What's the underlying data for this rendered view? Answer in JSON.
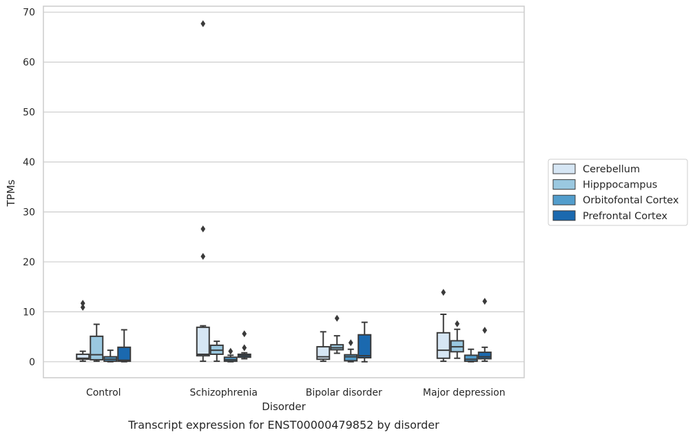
{
  "chart_data": {
    "type": "box",
    "caption": "Transcript expression for ENST00000479852 by disorder",
    "xlabel": "Disorder",
    "ylabel": "TPMs",
    "ylim": [
      -3.2,
      71.2
    ],
    "yticks": [
      0,
      10,
      20,
      30,
      40,
      50,
      60,
      70
    ],
    "grid": "horizontal",
    "legend_position": "right",
    "categories": [
      "Control",
      "Schizophrenia",
      "Bipolar disorder",
      "Major depression"
    ],
    "series": [
      {
        "name": "Cerebellum",
        "color": "#d6e6f4",
        "boxes": [
          {
            "whislo": 0.1,
            "q1": 0.5,
            "med": 0.7,
            "q3": 1.5,
            "whishi": 2.1,
            "fliers": [
              10.9,
              11.7
            ]
          },
          {
            "whislo": 0.1,
            "q1": 1.2,
            "med": 1.5,
            "q3": 6.9,
            "whishi": 7.2,
            "fliers": [
              67.7,
              26.6,
              21.1
            ]
          },
          {
            "whislo": 0.1,
            "q1": 0.5,
            "med": 1.0,
            "q3": 3.0,
            "whishi": 6.0,
            "fliers": []
          },
          {
            "whislo": 0.1,
            "q1": 0.7,
            "med": 2.3,
            "q3": 5.8,
            "whishi": 9.5,
            "fliers": [
              13.9
            ]
          }
        ]
      },
      {
        "name": "Hipppocampus",
        "color": "#9ac8e0",
        "boxes": [
          {
            "whislo": 0.1,
            "q1": 0.4,
            "med": 1.4,
            "q3": 5.1,
            "whishi": 7.5,
            "fliers": []
          },
          {
            "whislo": 0.1,
            "q1": 1.5,
            "med": 2.3,
            "q3": 3.3,
            "whishi": 4.1,
            "fliers": []
          },
          {
            "whislo": 1.7,
            "q1": 2.4,
            "med": 2.8,
            "q3": 3.4,
            "whishi": 5.2,
            "fliers": [
              8.7
            ]
          },
          {
            "whislo": 0.7,
            "q1": 2.0,
            "med": 3.0,
            "q3": 4.2,
            "whishi": 6.5,
            "fliers": [
              7.6
            ]
          }
        ]
      },
      {
        "name": "Orbitofontal Cortex",
        "color": "#529dcc",
        "boxes": [
          {
            "whislo": 0.0,
            "q1": 0.1,
            "med": 0.5,
            "q3": 1.0,
            "whishi": 2.3,
            "fliers": []
          },
          {
            "whislo": 0.0,
            "q1": 0.1,
            "med": 0.4,
            "q3": 0.9,
            "whishi": 1.3,
            "fliers": [
              2.1
            ]
          },
          {
            "whislo": 0.0,
            "q1": 0.2,
            "med": 1.0,
            "q3": 1.4,
            "whishi": 2.5,
            "fliers": [
              3.8
            ]
          },
          {
            "whislo": 0.0,
            "q1": 0.1,
            "med": 0.5,
            "q3": 1.3,
            "whishi": 2.5,
            "fliers": []
          }
        ]
      },
      {
        "name": "Prefrontal Cortex",
        "color": "#1b69af",
        "boxes": [
          {
            "whislo": 0.0,
            "q1": 0.1,
            "med": 0.3,
            "q3": 2.9,
            "whishi": 6.4,
            "fliers": []
          },
          {
            "whislo": 0.6,
            "q1": 0.9,
            "med": 1.2,
            "q3": 1.5,
            "whishi": 1.8,
            "fliers": [
              5.6,
              2.8
            ]
          },
          {
            "whislo": 0.0,
            "q1": 0.8,
            "med": 1.2,
            "q3": 5.4,
            "whishi": 7.9,
            "fliers": []
          },
          {
            "whislo": 0.1,
            "q1": 0.6,
            "med": 1.0,
            "q3": 1.9,
            "whishi": 2.9,
            "fliers": [
              12.1,
              6.3
            ]
          }
        ]
      }
    ]
  }
}
